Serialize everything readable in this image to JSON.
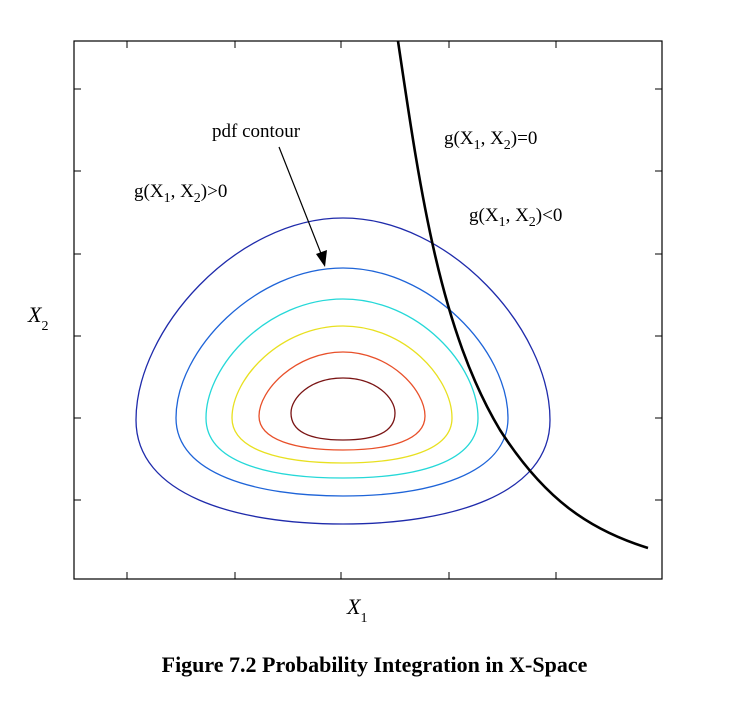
{
  "figure": {
    "caption_prefix": "Figure",
    "caption_number": "7.2",
    "caption_title": "Probability Integration in X-Space"
  },
  "axes": {
    "x_label": {
      "main": "X",
      "sub": "1"
    },
    "y_label": {
      "main": "X",
      "sub": "2"
    }
  },
  "annotations": {
    "pdf_contour": "pdf contour",
    "limit_state_boundary": {
      "prefix": "g(X",
      "sub1": "1",
      "mid": ", X",
      "sub2": "2",
      "suffix": ")=0"
    },
    "safe_region": {
      "prefix": "g(X",
      "sub1": "1",
      "mid": ", X",
      "sub2": "2",
      "suffix": ")>0"
    },
    "failure_region": {
      "prefix": "g(X",
      "sub1": "1",
      "mid": ", X",
      "sub2": "2",
      "suffix": ")<0"
    }
  },
  "contours": [
    {
      "level": 1,
      "color": "#1f2bab"
    },
    {
      "level": 2,
      "color": "#1e64d8"
    },
    {
      "level": 3,
      "color": "#25d8d8"
    },
    {
      "level": 4,
      "color": "#e8e020"
    },
    {
      "level": 5,
      "color": "#e8502a"
    },
    {
      "level": 6,
      "color": "#7a1414"
    }
  ],
  "colors": {
    "limit_state_curve": "#000000",
    "frame": "#000000"
  }
}
